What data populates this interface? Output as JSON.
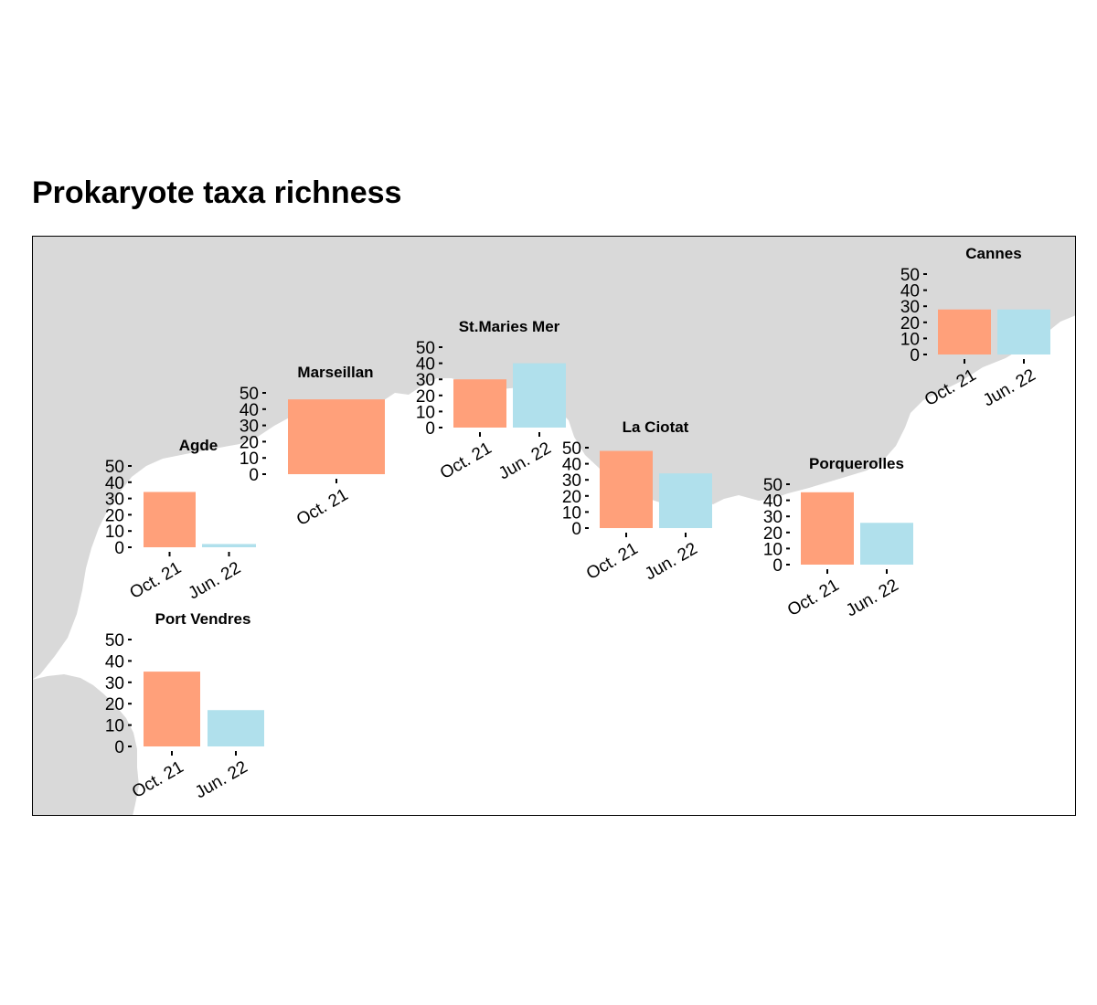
{
  "title": "Prokaryote taxa richness",
  "colors": {
    "oct21": "#FFA07A",
    "jun22": "#B0E0EC",
    "land": "#D9D9D9",
    "sea": "#FFFFFF",
    "frame": "#000000"
  },
  "chart_data": {
    "type": "bar",
    "title": "Prokaryote taxa richness",
    "ylim": [
      0,
      50
    ],
    "yticks": [
      0,
      10,
      20,
      30,
      40,
      50
    ],
    "legend": "none",
    "panels": [
      {
        "site": "Port Vendres",
        "categories": [
          "Oct. 21",
          "Jun. 22"
        ],
        "values": [
          35,
          17
        ]
      },
      {
        "site": "Agde",
        "categories": [
          "Oct. 21",
          "Jun. 22"
        ],
        "values": [
          34,
          2
        ]
      },
      {
        "site": "Marseillan",
        "categories": [
          "Oct. 21"
        ],
        "values": [
          46
        ]
      },
      {
        "site": "St.Maries Mer",
        "categories": [
          "Oct. 21",
          "Jun. 22"
        ],
        "values": [
          30,
          40
        ]
      },
      {
        "site": "La Ciotat",
        "categories": [
          "Oct. 21",
          "Jun. 22"
        ],
        "values": [
          48,
          34
        ]
      },
      {
        "site": "Porquerolles",
        "categories": [
          "Oct. 21",
          "Jun. 22"
        ],
        "values": [
          45,
          26
        ]
      },
      {
        "site": "Cannes",
        "categories": [
          "Oct. 21",
          "Jun. 22"
        ],
        "values": [
          28,
          28
        ]
      }
    ]
  }
}
